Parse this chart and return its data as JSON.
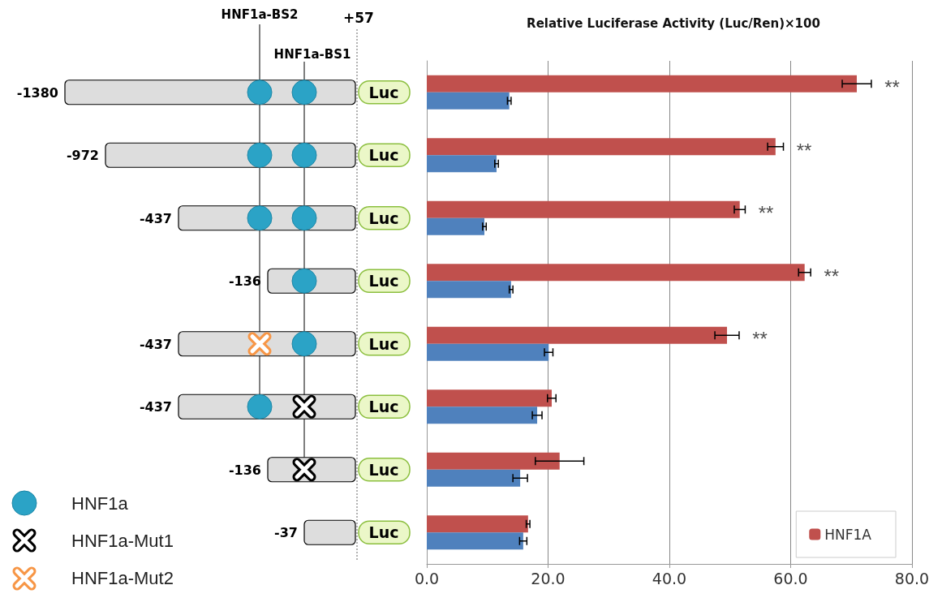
{
  "chart_data": {
    "type": "bar",
    "orientation": "horizontal",
    "title": "Relative Luciferase Activity (Luc/Ren)×100",
    "categories": [
      null,
      null,
      null,
      null,
      null,
      null,
      null,
      null
    ],
    "series": [
      {
        "name": "HNF1A",
        "color": "#c0504d",
        "values": [
          70.9,
          57.5,
          51.6,
          62.3,
          49.5,
          20.6,
          21.9,
          16.7
        ],
        "errors": [
          2.4,
          1.3,
          0.9,
          1.0,
          2.0,
          0.7,
          4.0,
          0.3
        ]
      },
      {
        "color": "#4f81bd",
        "values": [
          13.6,
          11.5,
          9.5,
          13.9,
          20.1,
          18.2,
          15.4,
          15.9
        ],
        "errors": [
          0.3,
          0.3,
          0.3,
          0.3,
          0.7,
          0.8,
          1.2,
          0.6
        ]
      }
    ],
    "xlim": [
      0,
      80
    ],
    "xticks": [
      {
        "value": 0,
        "label": "0.0"
      },
      {
        "value": 20,
        "label": "20.0"
      },
      {
        "value": 40,
        "label": "40.0"
      },
      {
        "value": 60,
        "label": "60.0"
      },
      {
        "value": 80,
        "label": "80.0"
      }
    ],
    "grid": "x",
    "legend": "bottom right",
    "annotations": [
      "HNF1a-BS2",
      "HNF1a-BS1",
      "+57",
      "Luc",
      "HNF1a",
      "HNF1a-Mut1",
      "HNF1a-Mut2",
      "-1380",
      "-972",
      "-437",
      "-136",
      "-437",
      "-437",
      "-136",
      "-37",
      "**",
      "**",
      "**",
      "**",
      "**"
    ]
  }
}
